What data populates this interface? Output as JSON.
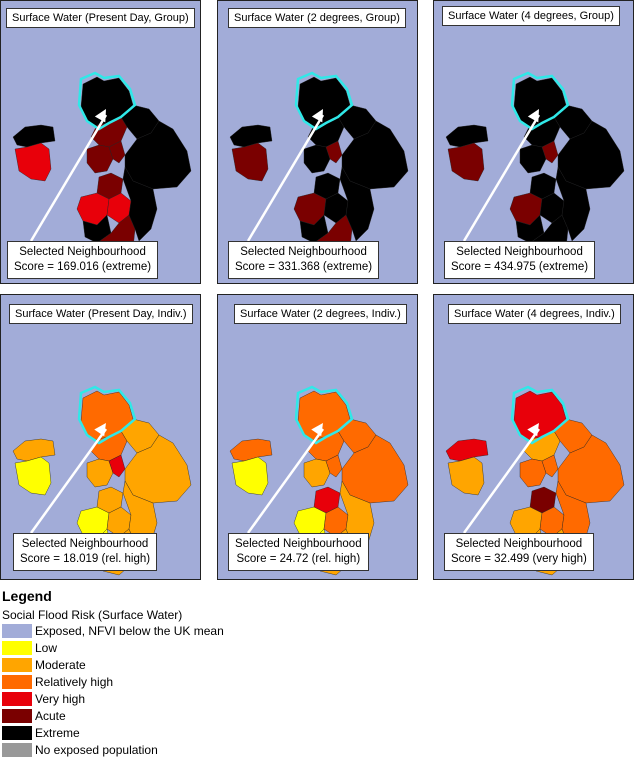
{
  "colors": {
    "exposed": "#a2acd8",
    "low": "#ffff00",
    "moderate": "#ffa500",
    "relatively_high": "#ff6a00",
    "very_high": "#e8000a",
    "acute": "#7a0000",
    "extreme": "#000000",
    "no_exposed": "#999999",
    "selected_outline": "#30e8e8",
    "arrow": "#ffffff"
  },
  "panels": [
    {
      "title": "Surface Water (Present Day, Group)",
      "line1": "Selected Neighbourhood",
      "line2": "Score = 169.016 (extreme)"
    },
    {
      "title": "Surface Water (2 degrees, Group)",
      "line1": "Selected Neighbourhood",
      "line2": "Score = 331.368 (extreme)"
    },
    {
      "title": "Surface Water (4 degrees, Group)",
      "line1": "Selected Neighbourhood",
      "line2": "Score = 434.975 (extreme)"
    },
    {
      "title": "Surface Water (Present Day, Indiv.)",
      "line1": "Selected Neighbourhood",
      "line2": "Score = 18.019 (rel. high)"
    },
    {
      "title": "Surface Water (2 degrees, Indiv.)",
      "line1": "Selected Neighbourhood",
      "line2": "Score = 24.72 (rel. high)"
    },
    {
      "title": "Surface Water (4 degrees, Indiv.)",
      "line1": "Selected Neighbourhood",
      "line2": "Score = 32.499 (very high)"
    }
  ],
  "region_classes": [
    [
      "extreme",
      "extreme",
      "acute",
      "extreme",
      "very_high",
      "acute",
      "acute",
      "very_high",
      "acute",
      "very_high",
      "extreme",
      "acute",
      "extreme",
      "extreme"
    ],
    [
      "extreme",
      "extreme",
      "extreme",
      "extreme",
      "acute",
      "extreme",
      "extreme",
      "acute",
      "acute",
      "extreme",
      "extreme",
      "acute",
      "extreme",
      "extreme"
    ],
    [
      "extreme",
      "extreme",
      "extreme",
      "extreme",
      "acute",
      "extreme",
      "extreme",
      "acute",
      "acute",
      "extreme",
      "extreme",
      "extreme",
      "extreme",
      "extreme"
    ],
    [
      "relatively_high",
      "moderate",
      "relatively_high",
      "moderate",
      "low",
      "moderate",
      "moderate",
      "low",
      "very_high",
      "moderate",
      "low",
      "moderate",
      "moderate",
      "moderate"
    ],
    [
      "relatively_high",
      "relatively_high",
      "relatively_high",
      "relatively_high",
      "low",
      "moderate",
      "very_high",
      "low",
      "relatively_high",
      "relatively_high",
      "low",
      "moderate",
      "relatively_high",
      "moderate"
    ],
    [
      "very_high",
      "very_high",
      "moderate",
      "relatively_high",
      "moderate",
      "relatively_high",
      "acute",
      "moderate",
      "relatively_high",
      "relatively_high",
      "moderate",
      "moderate",
      "relatively_high",
      "relatively_high"
    ]
  ],
  "legend": {
    "heading": "Legend",
    "subtitle": "Social Flood Risk (Surface Water)",
    "items": [
      {
        "label": "Exposed, NFVI below the UK mean",
        "class": "exposed"
      },
      {
        "label": "Low",
        "class": "low"
      },
      {
        "label": "Moderate",
        "class": "moderate"
      },
      {
        "label": "Relatively high",
        "class": "relatively_high"
      },
      {
        "label": "Very high",
        "class": "very_high"
      },
      {
        "label": "Acute",
        "class": "acute"
      },
      {
        "label": "Extreme",
        "class": "extreme"
      },
      {
        "label": "No exposed population",
        "class": "no_exposed"
      }
    ]
  }
}
